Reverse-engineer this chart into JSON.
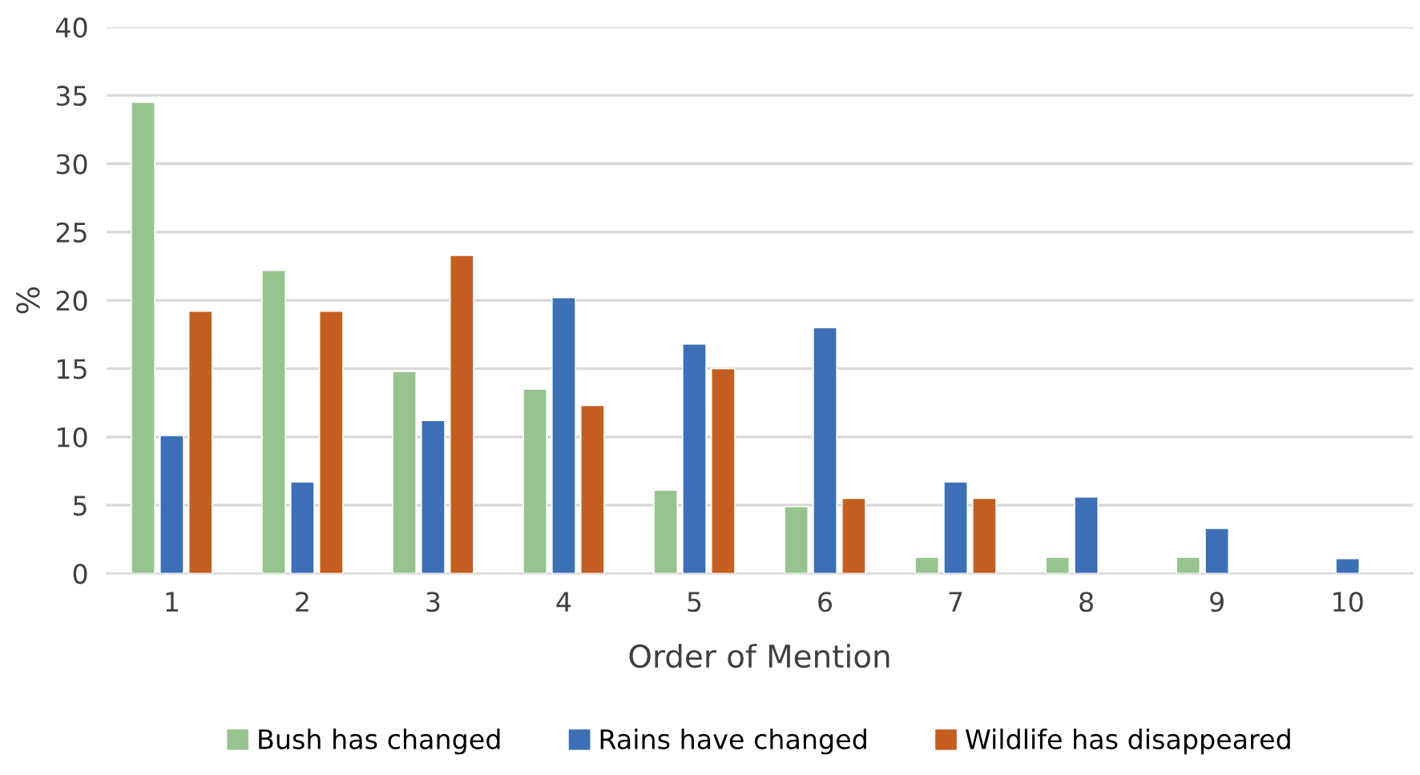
{
  "chart_data": {
    "type": "bar",
    "xlabel": "Order of Mention",
    "ylabel": "%",
    "categories": [
      "1",
      "2",
      "3",
      "4",
      "5",
      "6",
      "7",
      "8",
      "9",
      "10"
    ],
    "series": [
      {
        "name": "Bush has changed",
        "color": "#97c48e",
        "values": [
          34.5,
          22.2,
          14.8,
          13.5,
          6.1,
          4.9,
          1.2,
          1.2,
          1.2,
          null
        ]
      },
      {
        "name": "Rains have changed",
        "color": "#3d6fb6",
        "values": [
          10.1,
          6.7,
          11.2,
          20.2,
          16.8,
          18.0,
          6.7,
          5.6,
          3.3,
          1.1
        ]
      },
      {
        "name": "Wildlife has disappeared",
        "color": "#c45f21",
        "values": [
          19.2,
          19.2,
          23.3,
          12.3,
          15.0,
          5.5,
          5.5,
          null,
          null,
          null
        ]
      }
    ],
    "ylim": [
      0,
      40
    ],
    "yticks": [
      0,
      5,
      10,
      15,
      20,
      25,
      30,
      35,
      40
    ],
    "grid": "y",
    "legend": "bottom"
  }
}
